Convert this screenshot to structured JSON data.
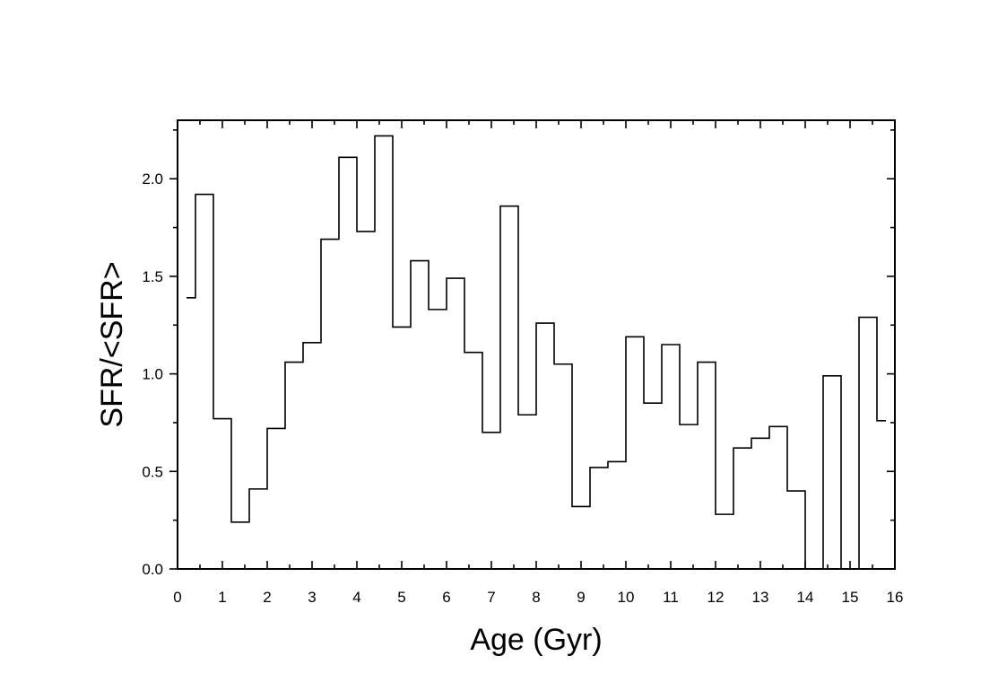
{
  "chart_data": {
    "type": "step",
    "title": "",
    "xlabel": "Age (Gyr)",
    "ylabel": "SFR/<SFR>",
    "xlim": [
      0,
      16
    ],
    "ylim": [
      0,
      2.3
    ],
    "xticks": [
      0,
      1,
      2,
      3,
      4,
      5,
      6,
      7,
      8,
      9,
      10,
      11,
      12,
      13,
      14,
      15,
      16
    ],
    "yticks": [
      0.0,
      0.5,
      1.0,
      1.5,
      2.0
    ],
    "ytick_labels": [
      "0.0",
      "0.5",
      "1.0",
      "1.5",
      "2.0"
    ],
    "xtick_labels": [
      "0",
      "1",
      "2",
      "3",
      "4",
      "5",
      "6",
      "7",
      "8",
      "9",
      "10",
      "11",
      "12",
      "13",
      "14",
      "15",
      "16"
    ],
    "grid": false,
    "bin_edges": [
      0.2,
      0.4,
      0.8,
      1.2,
      1.6,
      2.0,
      2.4,
      2.8,
      3.2,
      3.6,
      4.0,
      4.4,
      4.8,
      5.2,
      5.6,
      6.0,
      6.4,
      6.8,
      7.2,
      7.6,
      8.0,
      8.4,
      8.8,
      9.2,
      9.6,
      10.0,
      10.4,
      10.8,
      11.2,
      11.6,
      12.0,
      12.4,
      12.8,
      13.2,
      13.6,
      14.0,
      14.4,
      14.8,
      15.2,
      15.6,
      15.8
    ],
    "values": [
      1.39,
      1.92,
      0.77,
      0.24,
      0.41,
      0.72,
      1.06,
      1.16,
      1.69,
      2.11,
      1.73,
      2.22,
      1.24,
      1.58,
      1.33,
      1.49,
      1.11,
      0.7,
      1.86,
      0.79,
      1.26,
      1.05,
      0.32,
      0.52,
      0.55,
      1.19,
      0.85,
      1.15,
      0.74,
      1.06,
      0.28,
      0.62,
      0.67,
      0.73,
      0.4,
      0.0,
      0.99,
      0.0,
      1.29,
      0.76
    ]
  }
}
